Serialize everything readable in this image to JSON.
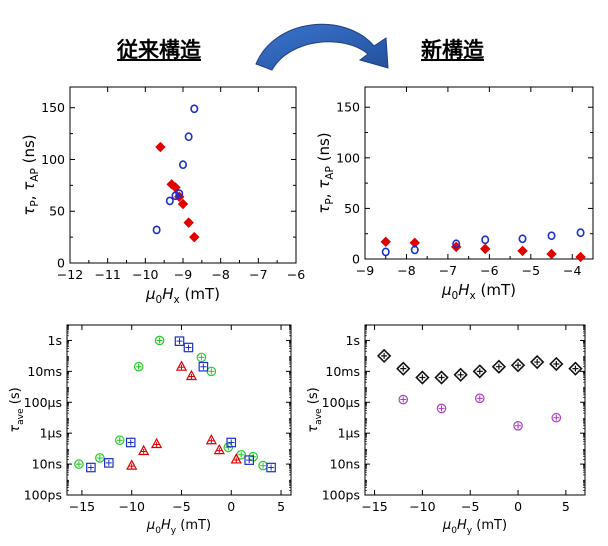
{
  "headers": {
    "left": "従来構造",
    "right": "新構造"
  },
  "colors": {
    "blue": "#1c2fc8",
    "red": "#e00000",
    "green": "#22cc22",
    "black": "#111111",
    "magenta": "#b03cc8",
    "arrow": "#2f62b8"
  },
  "chart_data": [
    {
      "id": "tl",
      "type": "scatter",
      "xlabel_parts": [
        "μ",
        "0",
        "H",
        "x",
        " (mT)"
      ],
      "ylabel_parts": [
        "τ",
        "P",
        ", ",
        "τ",
        "AP",
        " (ns)"
      ],
      "xlim": [
        -12,
        -6
      ],
      "ylim": [
        0,
        170
      ],
      "xticks": [
        -12,
        -11,
        -10,
        -9,
        -8,
        -7,
        -6
      ],
      "yticks": [
        0,
        50,
        100,
        150
      ],
      "series": [
        {
          "name": "tau_P",
          "marker": "diamond",
          "color": "red",
          "points": [
            [
              -9.6,
              112
            ],
            [
              -9.3,
              76
            ],
            [
              -9.2,
              73
            ],
            [
              -9.1,
              64
            ],
            [
              -9.0,
              57
            ],
            [
              -8.85,
              39
            ],
            [
              -8.7,
              25
            ]
          ]
        },
        {
          "name": "tau_AP",
          "marker": "circle",
          "color": "blue",
          "points": [
            [
              -9.7,
              32
            ],
            [
              -9.35,
              60
            ],
            [
              -9.2,
              65
            ],
            [
              -9.1,
              67
            ],
            [
              -9.0,
              95
            ],
            [
              -8.85,
              122
            ],
            [
              -8.7,
              149
            ]
          ]
        }
      ]
    },
    {
      "id": "tr",
      "type": "scatter",
      "xlabel_parts": [
        "μ",
        "0",
        "H",
        "x",
        " (mT)"
      ],
      "ylabel_parts": [
        "τ",
        "P",
        ", ",
        "τ",
        "AP",
        " (ns)"
      ],
      "xlim": [
        -9,
        -3.5
      ],
      "ylim": [
        0,
        170
      ],
      "xticks": [
        -9,
        -8,
        -7,
        -6,
        -5,
        -4
      ],
      "yticks": [
        0,
        50,
        100,
        150
      ],
      "series": [
        {
          "name": "tau_P",
          "marker": "diamond",
          "color": "red",
          "points": [
            [
              -8.5,
              17
            ],
            [
              -7.8,
              16
            ],
            [
              -6.8,
              12
            ],
            [
              -6.1,
              10
            ],
            [
              -5.2,
              8
            ],
            [
              -4.5,
              5
            ],
            [
              -3.8,
              2
            ]
          ]
        },
        {
          "name": "tau_AP",
          "marker": "circle",
          "color": "blue",
          "points": [
            [
              -8.5,
              7
            ],
            [
              -7.8,
              9
            ],
            [
              -6.8,
              15
            ],
            [
              -6.1,
              19
            ],
            [
              -5.2,
              20
            ],
            [
              -4.5,
              23
            ],
            [
              -3.8,
              26
            ]
          ]
        }
      ]
    },
    {
      "id": "bl",
      "type": "scatter",
      "yscale": "log",
      "xlabel_parts": [
        "μ",
        "0",
        "H",
        "y",
        " (mT)"
      ],
      "ylabel_parts": [
        "τ",
        "ave",
        " (s)"
      ],
      "xlim": [
        -16.5,
        6
      ],
      "ylim": [
        1e-10,
        10
      ],
      "xticks": [
        -15,
        -10,
        -5,
        0,
        5
      ],
      "yticks": [
        1e-10,
        1e-08,
        1e-06,
        0.0001,
        0.01,
        1
      ],
      "yticklabels": [
        "100ps",
        "10ns",
        "1μs",
        "100μs",
        "10ms",
        "1s"
      ],
      "series": [
        {
          "name": "green",
          "marker": "circle-plus",
          "color": "green",
          "points": [
            [
              -15.3,
              1e-08
            ],
            [
              -13.2,
              2.5e-08
            ],
            [
              -11.2,
              3.5e-07
            ],
            [
              -9.3,
              0.02
            ],
            [
              -7.2,
              1.0
            ],
            [
              -3.0,
              0.08
            ],
            [
              -2.0,
              0.01
            ],
            [
              -0.3,
              1.2e-07
            ],
            [
              1.0,
              4e-08
            ],
            [
              2.2,
              3e-08
            ],
            [
              3.2,
              8e-09
            ]
          ]
        },
        {
          "name": "blue",
          "marker": "square-plus",
          "color": "blue",
          "points": [
            [
              -14.1,
              6e-09
            ],
            [
              -12.3,
              1.2e-08
            ],
            [
              -10.1,
              2.5e-07
            ],
            [
              -5.2,
              0.9
            ],
            [
              -4.3,
              0.35
            ],
            [
              -2.8,
              0.02
            ],
            [
              0.0,
              2.5e-07
            ],
            [
              1.8,
              1.8e-08
            ],
            [
              4.0,
              6e-09
            ]
          ]
        },
        {
          "name": "red",
          "marker": "triangle-plus",
          "color": "red",
          "points": [
            [
              -10.0,
              8e-09
            ],
            [
              -8.8,
              7e-08
            ],
            [
              -7.5,
              2e-07
            ],
            [
              -5.0,
              0.02
            ],
            [
              -4.0,
              0.005
            ],
            [
              -2.0,
              3.5e-07
            ],
            [
              -1.2,
              8e-08
            ],
            [
              0.5,
              2e-08
            ]
          ]
        }
      ]
    },
    {
      "id": "br",
      "type": "scatter",
      "yscale": "log",
      "xlabel_parts": [
        "μ",
        "0",
        "H",
        "y",
        " (mT)"
      ],
      "ylabel_parts": [
        "τ",
        "ave",
        " (s)"
      ],
      "xlim": [
        -16,
        7
      ],
      "ylim": [
        1e-10,
        10
      ],
      "xticks": [
        -15,
        -10,
        -5,
        0,
        5
      ],
      "yticks": [
        1e-10,
        1e-08,
        1e-06,
        0.0001,
        0.01,
        1
      ],
      "yticklabels": [
        "100ps",
        "10ns",
        "1μs",
        "100μs",
        "10ms",
        "1s"
      ],
      "series": [
        {
          "name": "black",
          "marker": "diamond-plus",
          "color": "black",
          "points": [
            [
              -14,
              0.1
            ],
            [
              -12,
              0.015
            ],
            [
              -10,
              0.004
            ],
            [
              -8,
              0.004
            ],
            [
              -6,
              0.006
            ],
            [
              -4,
              0.01
            ],
            [
              -2,
              0.02
            ],
            [
              0,
              0.025
            ],
            [
              2,
              0.04
            ],
            [
              4,
              0.03
            ],
            [
              6,
              0.015
            ]
          ]
        },
        {
          "name": "magenta",
          "marker": "circle-plus",
          "color": "magenta",
          "points": [
            [
              -12,
              0.00015
            ],
            [
              -8,
              4e-05
            ],
            [
              -4,
              0.00018
            ],
            [
              0,
              3e-06
            ],
            [
              4,
              1e-05
            ]
          ]
        }
      ]
    }
  ]
}
